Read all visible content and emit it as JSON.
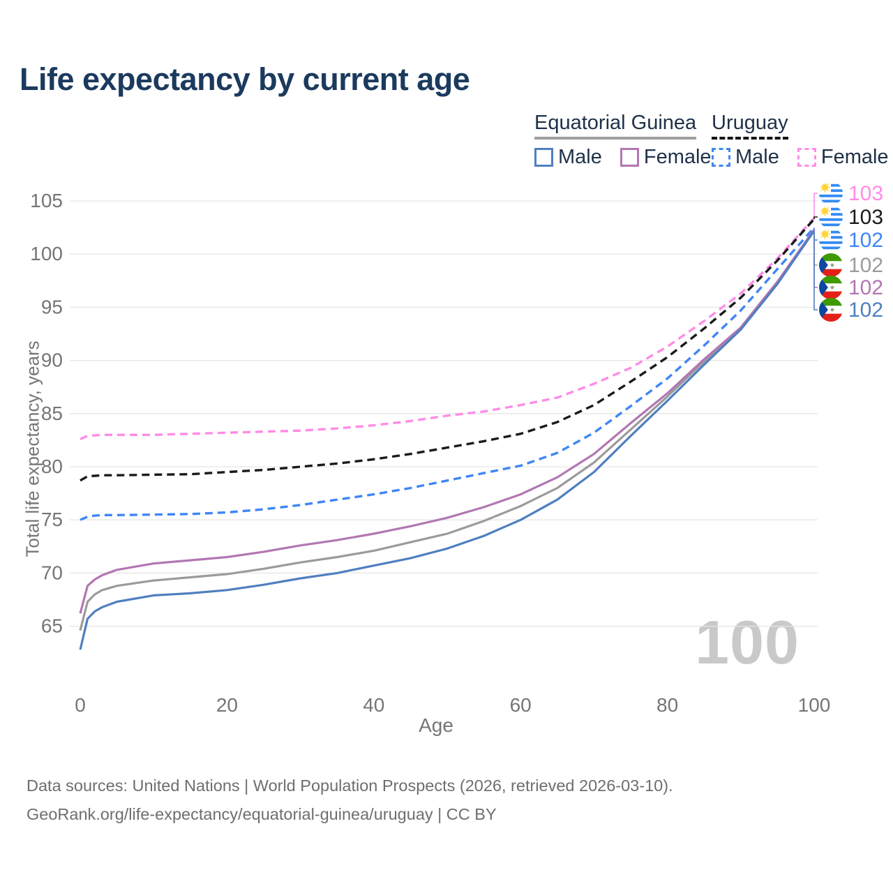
{
  "title": "Life expectancy by current age",
  "legend": {
    "groups": [
      {
        "label": "Equatorial Guinea",
        "line_style": "solid",
        "underline_color": "#9e9e9e",
        "items": [
          {
            "label": "Male",
            "color": "#4f7fc0",
            "dashed": false
          },
          {
            "label": "Female",
            "color": "#b277b2",
            "dashed": false
          }
        ]
      },
      {
        "label": "Uruguay",
        "line_style": "dashed",
        "underline_color": "#141414",
        "items": [
          {
            "label": "Male",
            "color": "#3f86f6",
            "dashed": true
          },
          {
            "label": "Female",
            "color": "#ff8ce6",
            "dashed": true
          }
        ]
      }
    ]
  },
  "watermark": "100",
  "footer": {
    "line1": "Data sources: United Nations | World Population Prospects (2026, retrieved 2026-03-10).",
    "line2": "GeoRank.org/life-expectancy/equatorial-guinea/uruguay | CC BY"
  },
  "chart_data": {
    "type": "line",
    "title": "Life expectancy by current age",
    "xlabel": "Age",
    "ylabel": "Total life expectancy, years",
    "xlim": [
      0,
      100
    ],
    "ylim": [
      62,
      106
    ],
    "grid": true,
    "legend_position": "top-right",
    "x_ticks": [
      0,
      20,
      40,
      60,
      80,
      100
    ],
    "y_ticks": [
      65,
      70,
      75,
      80,
      85,
      90,
      95,
      100,
      105
    ],
    "x": [
      0,
      1,
      2,
      3,
      5,
      10,
      15,
      20,
      25,
      30,
      35,
      40,
      45,
      50,
      55,
      60,
      65,
      70,
      75,
      80,
      85,
      90,
      95,
      100
    ],
    "series": [
      {
        "name": "Uruguay Female",
        "country": "Uruguay",
        "sex": "Female",
        "color": "#ff8ce6",
        "dashed": true,
        "end_value": 103.4,
        "values": [
          82.6,
          82.9,
          82.95,
          83.0,
          83.0,
          83.0,
          83.1,
          83.2,
          83.3,
          83.4,
          83.6,
          83.9,
          84.3,
          84.8,
          85.2,
          85.8,
          86.5,
          87.8,
          89.3,
          91.3,
          93.7,
          96.3,
          99.6,
          103.4
        ]
      },
      {
        "name": "Uruguay Both sexes",
        "country": "Uruguay",
        "sex": "Both",
        "color": "#1a1a1a",
        "dashed": true,
        "end_value": 103.3,
        "values": [
          78.7,
          79.1,
          79.15,
          79.2,
          79.2,
          79.25,
          79.3,
          79.5,
          79.7,
          80.0,
          80.3,
          80.7,
          81.2,
          81.8,
          82.4,
          83.1,
          84.2,
          85.8,
          88.0,
          90.3,
          93.0,
          95.9,
          99.4,
          103.3
        ]
      },
      {
        "name": "Uruguay Male",
        "country": "Uruguay",
        "sex": "Male",
        "color": "#3f86f6",
        "dashed": true,
        "end_value": 102.5,
        "values": [
          75.0,
          75.3,
          75.4,
          75.45,
          75.45,
          75.5,
          75.55,
          75.7,
          76.0,
          76.4,
          76.9,
          77.4,
          78.0,
          78.7,
          79.4,
          80.1,
          81.3,
          83.2,
          85.7,
          88.3,
          91.4,
          94.7,
          98.6,
          102.5
        ]
      },
      {
        "name": "Equatorial Guinea Both sexes",
        "country": "Equatorial Guinea",
        "sex": "Both",
        "color": "#9b9b9b",
        "dashed": false,
        "end_value": 102.2,
        "values": [
          64.6,
          67.3,
          68.0,
          68.4,
          68.8,
          69.3,
          69.6,
          69.9,
          70.4,
          71.0,
          71.5,
          72.1,
          72.9,
          73.7,
          74.9,
          76.3,
          78.0,
          80.4,
          83.5,
          86.6,
          89.9,
          93.0,
          97.3,
          102.2
        ]
      },
      {
        "name": "Equatorial Guinea Female",
        "country": "Equatorial Guinea",
        "sex": "Female",
        "color": "#b277b2",
        "dashed": false,
        "end_value": 102.3,
        "values": [
          66.2,
          68.8,
          69.4,
          69.8,
          70.3,
          70.9,
          71.2,
          71.5,
          72.0,
          72.6,
          73.1,
          73.7,
          74.4,
          75.2,
          76.2,
          77.4,
          79.0,
          81.2,
          84.1,
          86.9,
          90.1,
          93.1,
          97.4,
          102.3
        ]
      },
      {
        "name": "Equatorial Guinea Male",
        "country": "Equatorial Guinea",
        "sex": "Male",
        "color": "#4f7fc0",
        "dashed": false,
        "end_value": 102.2,
        "values": [
          62.8,
          65.7,
          66.4,
          66.8,
          67.3,
          67.9,
          68.1,
          68.4,
          68.9,
          69.5,
          70.0,
          70.7,
          71.4,
          72.3,
          73.5,
          75.0,
          76.9,
          79.5,
          82.9,
          86.2,
          89.6,
          92.9,
          97.2,
          102.2
        ]
      }
    ],
    "end_labels": [
      {
        "flag": "uruguay",
        "value": "103",
        "series_index": 0
      },
      {
        "flag": "uruguay",
        "value": "103",
        "series_index": 1
      },
      {
        "flag": "uruguay",
        "value": "102",
        "series_index": 2
      },
      {
        "flag": "equatorial-guinea",
        "value": "102",
        "series_index": 3
      },
      {
        "flag": "equatorial-guinea",
        "value": "102",
        "series_index": 4
      },
      {
        "flag": "equatorial-guinea",
        "value": "102",
        "series_index": 5
      }
    ]
  }
}
